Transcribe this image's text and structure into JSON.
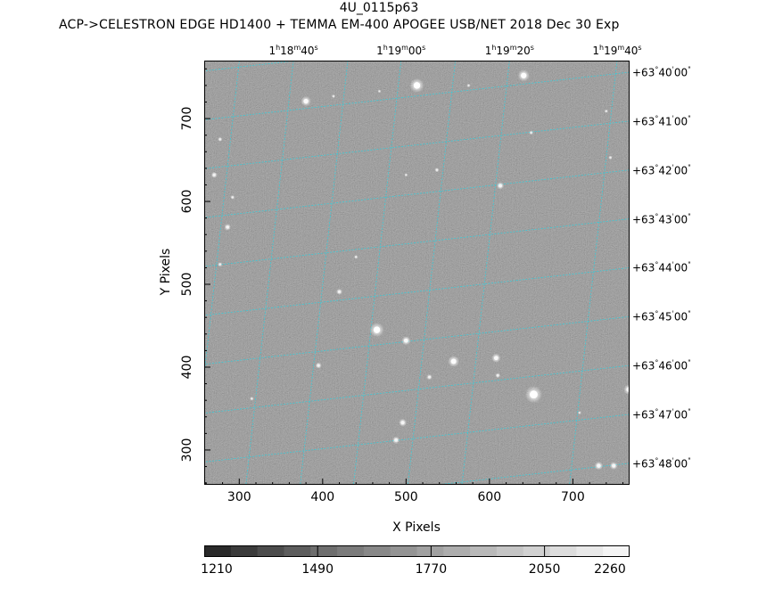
{
  "header": {
    "title": "4U_0115p63",
    "subtitle": "ACP->CELESTRON EDGE HD1400 + TEMMA EM-400 APOGEE USB/NET   2018 Dec 30    Exp"
  },
  "colors": {
    "background": "#ffffff",
    "image_gray": "#7f7f7f",
    "grid": "#3ec9d6",
    "star": "#ffffff"
  },
  "chart_data": {
    "type": "heatmap",
    "title": "4U_0115p63",
    "xlabel": "X Pixels",
    "ylabel": "Y Pixels",
    "xlim": [
      258,
      768
    ],
    "ylim": [
      258,
      770
    ],
    "xticks": [
      300,
      400,
      500,
      600,
      700
    ],
    "yticks": [
      300,
      400,
      500,
      600,
      700
    ],
    "xtick_labels": [
      "300",
      "400",
      "500",
      "600",
      "700"
    ],
    "ytick_labels": [
      "300",
      "400",
      "500",
      "600",
      "700"
    ],
    "ra_labels": [
      {
        "h": "1",
        "m": "18",
        "s": "40",
        "x": 365
      },
      {
        "h": "1",
        "m": "19",
        "s": "00",
        "x": 494
      },
      {
        "h": "1",
        "m": "19",
        "s": "20",
        "x": 624
      },
      {
        "h": "1",
        "m": "19",
        "s": "40",
        "x": 753
      }
    ],
    "dec_labels": [
      {
        "text": "+63°40'00\"",
        "y": 756
      },
      {
        "text": "+63°41'00\"",
        "y": 697
      },
      {
        "text": "+63°42'00\"",
        "y": 638
      },
      {
        "text": "+63°43'00\"",
        "y": 579
      },
      {
        "text": "+63°44'00\"",
        "y": 520
      },
      {
        "text": "+63°45'00\"",
        "y": 461
      },
      {
        "text": "+63°46'00\"",
        "y": 402
      },
      {
        "text": "+63°47'00\"",
        "y": 343
      },
      {
        "text": "+63°48'00\"",
        "y": 284
      }
    ],
    "grid": true,
    "stars": [
      {
        "x": 513,
        "y": 740,
        "mag": 5.0
      },
      {
        "x": 641,
        "y": 752,
        "mag": 4.2
      },
      {
        "x": 380,
        "y": 721,
        "mag": 3.6
      },
      {
        "x": 465,
        "y": 445,
        "mag": 5.0
      },
      {
        "x": 653,
        "y": 367,
        "mag": 6.0
      },
      {
        "x": 557,
        "y": 407,
        "mag": 4.0
      },
      {
        "x": 608,
        "y": 411,
        "mag": 3.2
      },
      {
        "x": 500,
        "y": 432,
        "mag": 3.2
      },
      {
        "x": 767,
        "y": 373,
        "mag": 3.6
      },
      {
        "x": 731,
        "y": 281,
        "mag": 3.0
      },
      {
        "x": 749,
        "y": 281,
        "mag": 2.8
      },
      {
        "x": 496,
        "y": 333,
        "mag": 2.8
      },
      {
        "x": 488,
        "y": 312,
        "mag": 2.6
      },
      {
        "x": 613,
        "y": 619,
        "mag": 2.6
      },
      {
        "x": 286,
        "y": 569,
        "mag": 2.4
      },
      {
        "x": 270,
        "y": 632,
        "mag": 2.2
      },
      {
        "x": 420,
        "y": 491,
        "mag": 2.2
      },
      {
        "x": 395,
        "y": 402,
        "mag": 2.2
      },
      {
        "x": 528,
        "y": 388,
        "mag": 2.0
      },
      {
        "x": 610,
        "y": 390,
        "mag": 1.8
      },
      {
        "x": 277,
        "y": 524,
        "mag": 1.6
      },
      {
        "x": 537,
        "y": 638,
        "mag": 1.6
      },
      {
        "x": 277,
        "y": 675,
        "mag": 1.6
      },
      {
        "x": 292,
        "y": 605,
        "mag": 1.5
      },
      {
        "x": 650,
        "y": 683,
        "mag": 1.5
      },
      {
        "x": 745,
        "y": 653,
        "mag": 1.4
      },
      {
        "x": 440,
        "y": 533,
        "mag": 1.4
      },
      {
        "x": 315,
        "y": 362,
        "mag": 1.4
      },
      {
        "x": 413,
        "y": 727,
        "mag": 1.3
      },
      {
        "x": 575,
        "y": 740,
        "mag": 1.3
      },
      {
        "x": 740,
        "y": 709,
        "mag": 1.3
      },
      {
        "x": 500,
        "y": 632,
        "mag": 1.2
      },
      {
        "x": 468,
        "y": 733,
        "mag": 1.2
      },
      {
        "x": 708,
        "y": 345,
        "mag": 1.2
      }
    ],
    "colorbar": {
      "min": 1210,
      "max": 2260,
      "tick_labels": [
        "1210",
        "1490",
        "1770",
        "2050",
        "2260"
      ],
      "tick_values": [
        1210,
        1490,
        1770,
        2050,
        2260
      ],
      "segments": [
        "#2a2a2a",
        "#3b3b3b",
        "#4c4c4c",
        "#5d5d5d",
        "#6e6e6e",
        "#7b7b7b",
        "#888888",
        "#949494",
        "#a1a1a1",
        "#adadad",
        "#b9b9b9",
        "#c5c5c5",
        "#d1d1d1",
        "#dddddd",
        "#e9e9e9",
        "#f4f4f4"
      ]
    }
  }
}
